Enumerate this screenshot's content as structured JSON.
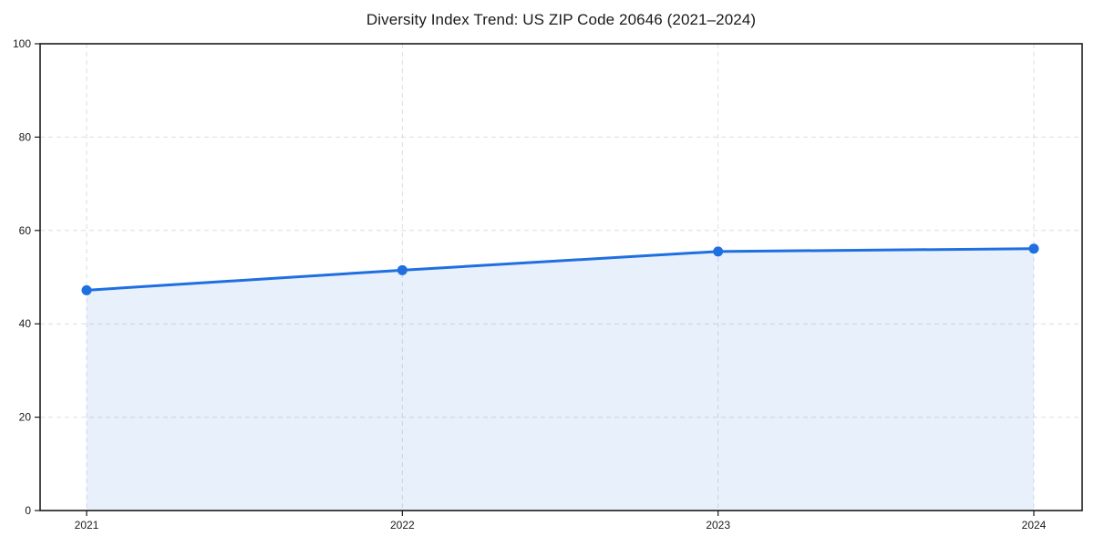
{
  "chart_data": {
    "type": "area",
    "title": "Diversity Index Trend: US ZIP Code 20646 (2021–2024)",
    "categories": [
      "2021",
      "2022",
      "2023",
      "2024"
    ],
    "series": [
      {
        "name": "Diversity Index",
        "values": [
          47.2,
          51.5,
          55.5,
          56.1
        ]
      }
    ],
    "xlabel": "",
    "ylabel": "",
    "ylim": [
      0,
      100
    ],
    "yticks": [
      0,
      20,
      40,
      60,
      80,
      100
    ],
    "grid": "dashed, horizontal and vertical at ticks",
    "legend": "none",
    "markers": "filled circles at each data point",
    "colors": {
      "line": "#1f6fe0",
      "marker": "#1f6fe0",
      "area_fill": "#1f6fe0",
      "area_opacity": 0.1,
      "grid": "#dedede",
      "spine": "#1a1a1a",
      "text": "#1a1a1a",
      "background": "#ffffff"
    }
  }
}
